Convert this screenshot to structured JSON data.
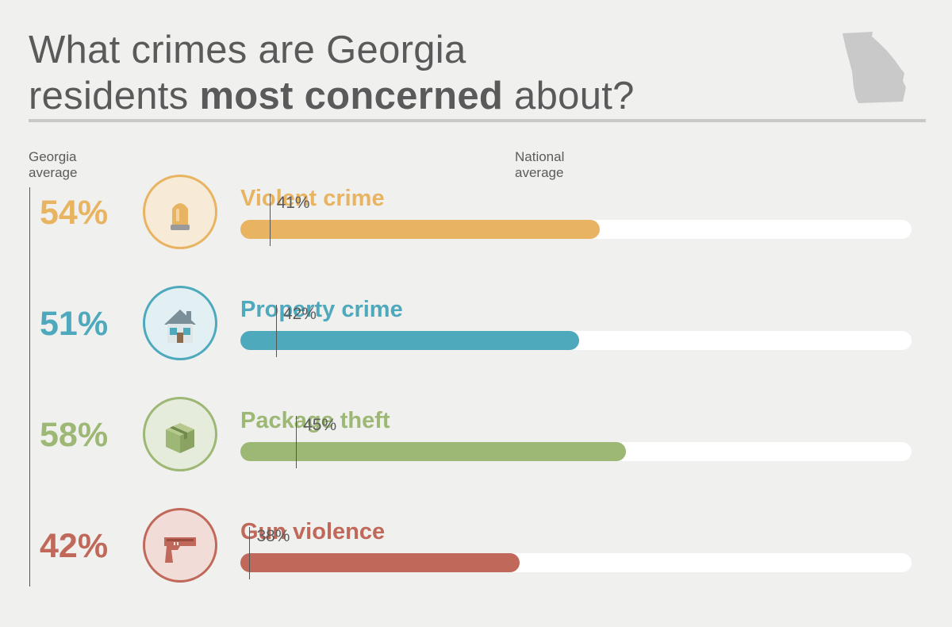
{
  "header": {
    "title_part1": "What crimes are Georgia",
    "title_part2": "residents ",
    "title_bold": "most concerned",
    "title_part3": " about?",
    "map_icon": "georgia-state-map-icon"
  },
  "legend": {
    "georgia_line1": "Georgia",
    "georgia_line2": "average",
    "national_line1": "National",
    "national_line2": "average"
  },
  "chart_data": {
    "type": "bar",
    "orientation": "horizontal",
    "xlim": [
      0,
      100
    ],
    "categories": [
      "Violent crime",
      "Property crime",
      "Package theft",
      "Gun violence"
    ],
    "series": [
      {
        "name": "Georgia average",
        "values": [
          54,
          51,
          58,
          42
        ]
      },
      {
        "name": "National average",
        "values": [
          41,
          42,
          45,
          38
        ]
      }
    ],
    "georgia_labels": [
      "54%",
      "51%",
      "58%",
      "42%"
    ],
    "national_labels": [
      "41%",
      "42%",
      "45%",
      "38%"
    ],
    "colors": [
      "#e8b462",
      "#4ea9bc",
      "#9db774",
      "#c0695a"
    ],
    "icons": [
      "siren-icon",
      "house-icon",
      "package-icon",
      "gun-icon"
    ]
  }
}
